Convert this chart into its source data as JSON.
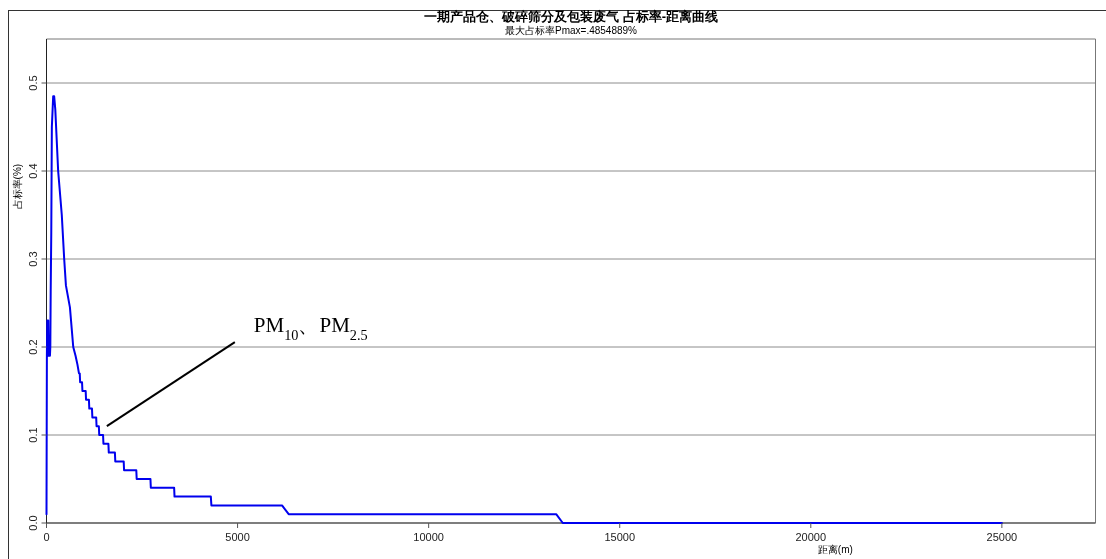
{
  "chart_data": {
    "type": "line",
    "title": "一期产品仓、破碎筛分及包装废气 占标率-距离曲线",
    "subtitle": "最大占标率Pmax=.4854889%",
    "xlabel": "距离(m)",
    "ylabel": "占标率(%)",
    "annotations": [
      {
        "text": "PM$_{10}$、PM$_{2.5}$",
        "x": 1370,
        "y": 0.11
      }
    ],
    "x": [
      0,
      10,
      20,
      45,
      55,
      90,
      100,
      110,
      125,
      140,
      175,
      200,
      230,
      305,
      400,
      463,
      508,
      613,
      700,
      760,
      810,
      850,
      870,
      880,
      930,
      940,
      1025,
      1035,
      1110,
      1120,
      1190,
      1200,
      1300,
      1310,
      1370,
      1380,
      1480,
      1490,
      1620,
      1630,
      1790,
      1800,
      2020,
      2030,
      2350,
      2360,
      2720,
      2730,
      3340,
      3350,
      4300,
      4315,
      6163,
      6337,
      13337,
      13510,
      25000
    ],
    "series": [
      {
        "color": "#0000ee",
        "values": [
          0.01,
          0.19,
          0.23,
          0.23,
          0.19,
          0.19,
          0.2,
          0.265,
          0.33,
          0.45,
          0.485,
          0.485,
          0.47,
          0.4,
          0.35,
          0.3,
          0.27,
          0.245,
          0.2,
          0.19,
          0.18,
          0.17,
          0.17,
          0.16,
          0.16,
          0.15,
          0.15,
          0.14,
          0.14,
          0.13,
          0.13,
          0.12,
          0.12,
          0.11,
          0.11,
          0.1,
          0.1,
          0.09,
          0.09,
          0.08,
          0.08,
          0.07,
          0.07,
          0.06,
          0.06,
          0.05,
          0.05,
          0.04,
          0.04,
          0.03,
          0.03,
          0.02,
          0.02,
          0.01,
          0.01,
          0,
          0
        ]
      }
    ],
    "xlim": [
      0,
      27450
    ],
    "ylim": [
      0,
      0.55
    ],
    "xticks": [
      0,
      5000,
      10000,
      15000,
      20000,
      25000
    ],
    "yticks": [
      {
        "value": 0,
        "label": "0.0"
      },
      0.1,
      0.2,
      0.3,
      0.4,
      0.5
    ],
    "grid": "y"
  }
}
